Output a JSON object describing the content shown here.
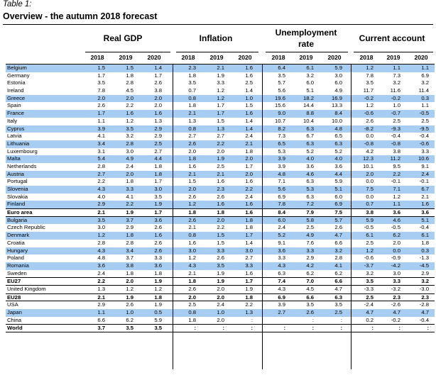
{
  "caption": "Table 1:",
  "title": "Overview - the autumn 2018 forecast",
  "groups": {
    "gdp": "Real GDP",
    "inflation": "Inflation",
    "unemployment_1": "Unemployment",
    "unemployment_2": "rate",
    "current_account": "Current account"
  },
  "years": [
    "2018",
    "2019",
    "2020"
  ],
  "rows": [
    {
      "name": "Belgium",
      "style": "blue",
      "values": [
        "1.5",
        "1.5",
        "1.4",
        "2.3",
        "2.1",
        "1.6",
        "6.4",
        "6.1",
        "5.9",
        "1.2",
        "1.1",
        "1.1"
      ]
    },
    {
      "name": "Germany",
      "style": "white",
      "values": [
        "1.7",
        "1.8",
        "1.7",
        "1.8",
        "1.9",
        "1.6",
        "3.5",
        "3.2",
        "3.0",
        "7.8",
        "7.3",
        "6.9"
      ]
    },
    {
      "name": "Estonia",
      "style": "white",
      "values": [
        "3.5",
        "2.8",
        "2.6",
        "3.5",
        "3.3",
        "2.5",
        "5.7",
        "6.0",
        "6.0",
        "3.5",
        "3.2",
        "3.2"
      ]
    },
    {
      "name": "Ireland",
      "style": "white",
      "values": [
        "7.8",
        "4.5",
        "3.8",
        "0.7",
        "1.2",
        "1.4",
        "5.6",
        "5.1",
        "4.9",
        "11.7",
        "11.6",
        "11.4"
      ]
    },
    {
      "name": "Greece",
      "style": "blue",
      "values": [
        "2.0",
        "2.0",
        "2.0",
        "0.8",
        "1.2",
        "1.0",
        "19.6",
        "18.2",
        "16.9",
        "-0.2",
        "-0.2",
        "0.3"
      ]
    },
    {
      "name": "Spain",
      "style": "white",
      "values": [
        "2.6",
        "2.2",
        "2.0",
        "1.8",
        "1.7",
        "1.5",
        "15.6",
        "14.4",
        "13.3",
        "1.2",
        "1.0",
        "1.1"
      ]
    },
    {
      "name": "France",
      "style": "blue",
      "values": [
        "1.7",
        "1.6",
        "1.6",
        "2.1",
        "1.7",
        "1.6",
        "9.0",
        "8.8",
        "8.4",
        "-0.6",
        "-0.7",
        "-0.5"
      ]
    },
    {
      "name": "Italy",
      "style": "white",
      "values": [
        "1.1",
        "1.2",
        "1.3",
        "1.3",
        "1.5",
        "1.4",
        "10.7",
        "10.4",
        "10.0",
        "2.6",
        "2.5",
        "2.5"
      ]
    },
    {
      "name": "Cyprus",
      "style": "blue",
      "values": [
        "3.9",
        "3.5",
        "2.9",
        "0.8",
        "1.3",
        "1.4",
        "8.2",
        "6.3",
        "4.8",
        "-8.2",
        "-9.3",
        "-9.5"
      ]
    },
    {
      "name": "Latvia",
      "style": "white",
      "values": [
        "4.1",
        "3.2",
        "2.9",
        "2.7",
        "2.7",
        "2.4",
        "7.3",
        "6.7",
        "6.5",
        "0.0",
        "-0.4",
        "-0.4"
      ]
    },
    {
      "name": "Lithuania",
      "style": "blue",
      "values": [
        "3.4",
        "2.8",
        "2.5",
        "2.6",
        "2.2",
        "2.1",
        "6.5",
        "6.3",
        "6.3",
        "-0.8",
        "-0.8",
        "-0.6"
      ]
    },
    {
      "name": "Luxembourg",
      "style": "white",
      "values": [
        "3.1",
        "3.0",
        "2.7",
        "2.0",
        "2.0",
        "1.8",
        "5.3",
        "5.2",
        "5.2",
        "4.2",
        "3.8",
        "3.3"
      ]
    },
    {
      "name": "Malta",
      "style": "blue",
      "values": [
        "5.4",
        "4.9",
        "4.4",
        "1.8",
        "1.9",
        "2.0",
        "3.9",
        "4.0",
        "4.0",
        "12.3",
        "11.2",
        "10.6"
      ]
    },
    {
      "name": "Netherlands",
      "style": "white",
      "values": [
        "2.8",
        "2.4",
        "1.8",
        "1.6",
        "2.5",
        "1.7",
        "3.9",
        "3.6",
        "3.6",
        "10.1",
        "9.5",
        "9.1"
      ]
    },
    {
      "name": "Austria",
      "style": "blue",
      "values": [
        "2.7",
        "2.0",
        "1.8",
        "2.1",
        "2.1",
        "2.0",
        "4.8",
        "4.6",
        "4.4",
        "2.0",
        "2.2",
        "2.4"
      ]
    },
    {
      "name": "Portugal",
      "style": "white",
      "values": [
        "2.2",
        "1.8",
        "1.7",
        "1.5",
        "1.6",
        "1.6",
        "7.1",
        "6.3",
        "5.9",
        "0.0",
        "-0.1",
        "-0.1"
      ]
    },
    {
      "name": "Slovenia",
      "style": "blue",
      "values": [
        "4.3",
        "3.3",
        "3.0",
        "2.0",
        "2.3",
        "2.2",
        "5.6",
        "5.3",
        "5.1",
        "7.5",
        "7.1",
        "6.7"
      ]
    },
    {
      "name": "Slovakia",
      "style": "white",
      "values": [
        "4.0",
        "4.1",
        "3.5",
        "2.6",
        "2.6",
        "2.4",
        "6.9",
        "6.3",
        "6.0",
        "0.0",
        "1.2",
        "2.1"
      ]
    },
    {
      "name": "Finland",
      "style": "blue",
      "values": [
        "2.9",
        "2.2",
        "1.9",
        "1.2",
        "1.6",
        "1.6",
        "7.8",
        "7.2",
        "6.9",
        "0.7",
        "1.1",
        "1.6"
      ]
    },
    {
      "name": "Euro area",
      "style": "bold",
      "values": [
        "2.1",
        "1.9",
        "1.7",
        "1.8",
        "1.8",
        "1.6",
        "8.4",
        "7.9",
        "7.5",
        "3.8",
        "3.6",
        "3.6"
      ]
    },
    {
      "name": "Bulgaria",
      "style": "blue",
      "values": [
        "3.5",
        "3.7",
        "3.6",
        "2.6",
        "2.0",
        "1.8",
        "6.0",
        "5.8",
        "5.7",
        "5.9",
        "4.6",
        "5.1"
      ]
    },
    {
      "name": "Czech Republic",
      "style": "white",
      "values": [
        "3.0",
        "2.9",
        "2.6",
        "2.1",
        "2.2",
        "1.8",
        "2.4",
        "2.5",
        "2.6",
        "-0.5",
        "-0.5",
        "-0.4"
      ]
    },
    {
      "name": "Denmark",
      "style": "blue",
      "values": [
        "1.2",
        "1.8",
        "1.6",
        "0.8",
        "1.5",
        "1.7",
        "5.2",
        "4.9",
        "4.7",
        "6.1",
        "6.2",
        "6.1"
      ]
    },
    {
      "name": "Croatia",
      "style": "white",
      "values": [
        "2.8",
        "2.8",
        "2.6",
        "1.6",
        "1.5",
        "1.4",
        "9.1",
        "7.6",
        "6.6",
        "2.5",
        "2.0",
        "1.8"
      ]
    },
    {
      "name": "Hungary",
      "style": "blue",
      "values": [
        "4.3",
        "3.4",
        "2.6",
        "3.0",
        "3.3",
        "3.0",
        "3.6",
        "3.3",
        "3.2",
        "1.2",
        "0.0",
        "0.3"
      ]
    },
    {
      "name": "Poland",
      "style": "white",
      "values": [
        "4.8",
        "3.7",
        "3.3",
        "1.2",
        "2.6",
        "2.7",
        "3.3",
        "2.9",
        "2.8",
        "-0.6",
        "-0.9",
        "-1.3"
      ]
    },
    {
      "name": "Romania",
      "style": "blue",
      "values": [
        "3.6",
        "3.8",
        "3.6",
        "4.3",
        "3.5",
        "3.3",
        "4.3",
        "4.2",
        "4.1",
        "-3.7",
        "-4.2",
        "-4.5"
      ]
    },
    {
      "name": "Sweden",
      "style": "white",
      "values": [
        "2.4",
        "1.8",
        "1.8",
        "2.1",
        "1.9",
        "1.6",
        "6.3",
        "6.2",
        "6.2",
        "3.2",
        "3.0",
        "2.9"
      ]
    },
    {
      "name": "EU27",
      "style": "bold",
      "values": [
        "2.2",
        "2.0",
        "1.9",
        "1.8",
        "1.9",
        "1.7",
        "7.4",
        "7.0",
        "6.6",
        "3.5",
        "3.3",
        "3.2"
      ]
    },
    {
      "name": "United Kingdom",
      "style": "white",
      "values": [
        "1.3",
        "1.2",
        "1.2",
        "2.6",
        "2.0",
        "1.9",
        "4.3",
        "4.5",
        "4.7",
        "-3.3",
        "-3.2",
        "-3.0"
      ]
    },
    {
      "name": "EU28",
      "style": "bold",
      "values": [
        "2.1",
        "1.9",
        "1.8",
        "2.0",
        "2.0",
        "1.8",
        "6.9",
        "6.6",
        "6.3",
        "2.5",
        "2.3",
        "2.3"
      ]
    },
    {
      "name": "USA",
      "style": "white",
      "values": [
        "2.9",
        "2.6",
        "1.9",
        "2.5",
        "2.4",
        "2.2",
        "3.9",
        "3.5",
        "3.5",
        "-2.4",
        "-2.6",
        "-2.8"
      ]
    },
    {
      "name": "Japan",
      "style": "blue",
      "values": [
        "1.1",
        "1.0",
        "0.5",
        "0.8",
        "1.0",
        "1.3",
        "2.7",
        "2.6",
        "2.5",
        "4.7",
        "4.7",
        "4.7"
      ]
    },
    {
      "name": "China",
      "style": "white",
      "values": [
        "6.6",
        "6.2",
        "5.9",
        "1.8",
        "2.0",
        ":",
        "",
        ":",
        ":",
        "0.2",
        "-0.2",
        "-0.4"
      ]
    },
    {
      "name": "World",
      "style": "bold",
      "values": [
        "3.7",
        "3.5",
        "3.5",
        ":",
        ":",
        ":",
        ":",
        ":",
        ":",
        ":",
        ":",
        ":"
      ]
    }
  ]
}
